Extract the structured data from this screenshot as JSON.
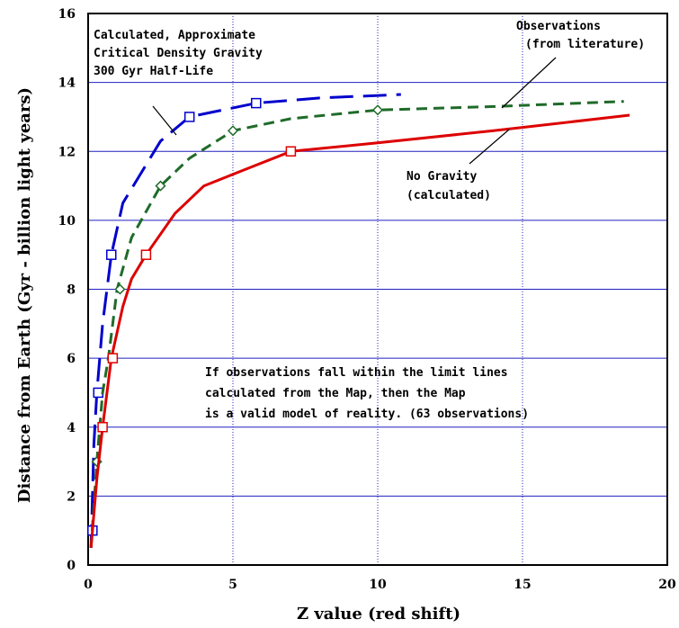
{
  "chart_data": {
    "type": "line",
    "xlabel": "Z value (red shift)",
    "ylabel": "Distance from Earth (Gyr - billion light years)",
    "xlim": [
      0,
      20
    ],
    "ylim": [
      0,
      16
    ],
    "x_ticks": [
      "0",
      "5",
      "10",
      "15",
      "20"
    ],
    "y_ticks": [
      "0",
      "2",
      "4",
      "6",
      "8",
      "10",
      "12",
      "14",
      "16"
    ],
    "grid": true,
    "series": [
      {
        "label_lines": [
          "Calculated, Approximate",
          "Critical Density Gravity",
          "300 Gyr Half-Life"
        ],
        "color": "#0000cc",
        "dash": "long-dash",
        "marker": "square",
        "points": [
          [
            0.1,
            0.5
          ],
          [
            0.2,
            3.5
          ],
          [
            0.3,
            5
          ],
          [
            0.5,
            7
          ],
          [
            0.8,
            9
          ],
          [
            1.2,
            10.5
          ],
          [
            2.5,
            12.3
          ],
          [
            3.5,
            13
          ],
          [
            5.8,
            13.4
          ],
          [
            8,
            13.55
          ],
          [
            10.8,
            13.65
          ]
        ],
        "marked_points": [
          [
            0.15,
            1
          ],
          [
            0.35,
            5
          ],
          [
            0.8,
            9
          ],
          [
            3.5,
            13
          ],
          [
            5.8,
            13.4
          ]
        ]
      },
      {
        "label_lines": [
          "Observations",
          "(from literature)"
        ],
        "color": "#1f6b2a",
        "dash": "short-dash",
        "marker": "diamond",
        "points": [
          [
            0.1,
            0.5
          ],
          [
            0.3,
            3
          ],
          [
            0.5,
            5
          ],
          [
            0.7,
            6
          ],
          [
            1,
            8
          ],
          [
            1.5,
            9.5
          ],
          [
            2.5,
            11
          ],
          [
            3.5,
            11.8
          ],
          [
            5,
            12.6
          ],
          [
            7,
            12.95
          ],
          [
            10,
            13.2
          ],
          [
            14,
            13.3
          ],
          [
            18.5,
            13.45
          ]
        ],
        "marked_points": [
          [
            0.3,
            3
          ],
          [
            1.1,
            8
          ],
          [
            2.5,
            11
          ],
          [
            5,
            12.6
          ],
          [
            10,
            13.2
          ]
        ]
      },
      {
        "label_lines": [
          "No Gravity",
          "(calculated)"
        ],
        "color": "#dd0000",
        "dash": "solid",
        "marker": "square",
        "points": [
          [
            0.1,
            0.5
          ],
          [
            0.3,
            2.5
          ],
          [
            0.5,
            4
          ],
          [
            0.8,
            6
          ],
          [
            1.2,
            7.5
          ],
          [
            1.5,
            8.3
          ],
          [
            2,
            9
          ],
          [
            3,
            10.2
          ],
          [
            4,
            11
          ],
          [
            5.5,
            11.5
          ],
          [
            7,
            12
          ],
          [
            10,
            12.25
          ],
          [
            14,
            12.6
          ],
          [
            18.7,
            13.05
          ]
        ],
        "marked_points": [
          [
            0.5,
            4
          ],
          [
            0.85,
            6
          ],
          [
            2,
            9
          ],
          [
            7,
            12
          ]
        ]
      }
    ],
    "annotation_lines": [
      "If observations fall within the limit lines",
      "calculated from the Map, then the Map",
      "is a valid model of reality. (63 observations)"
    ]
  }
}
